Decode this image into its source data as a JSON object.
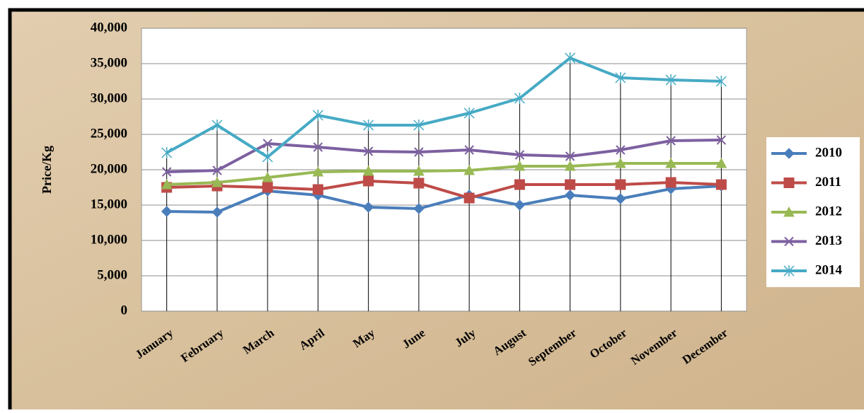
{
  "chart_data": {
    "type": "line",
    "y_label": "Price/Kg",
    "categories": [
      "January",
      "February",
      "March",
      "April",
      "May",
      "June",
      "July",
      "August",
      "September",
      "October",
      "November",
      "December"
    ],
    "series": [
      {
        "name": "2010",
        "color": "#4a7ebb",
        "marker": "diamond",
        "values": [
          14100,
          14000,
          17000,
          16400,
          14700,
          14500,
          16400,
          15000,
          16400,
          15900,
          17300,
          17700
        ]
      },
      {
        "name": "2011",
        "color": "#be4b48",
        "marker": "square",
        "values": [
          17500,
          17700,
          17500,
          17200,
          18400,
          18100,
          16000,
          17900,
          17900,
          17900,
          18200,
          17900
        ]
      },
      {
        "name": "2012",
        "color": "#98b954",
        "marker": "triangle",
        "values": [
          17900,
          18200,
          18900,
          19700,
          19800,
          19800,
          19900,
          20500,
          20500,
          20900,
          20900,
          20900
        ]
      },
      {
        "name": "2013",
        "color": "#7d60a0",
        "marker": "x",
        "values": [
          19700,
          19900,
          23700,
          23200,
          22600,
          22500,
          22800,
          22100,
          21900,
          22800,
          24100,
          24200
        ]
      },
      {
        "name": "2014",
        "color": "#46aac5",
        "marker": "star",
        "values": [
          22400,
          26300,
          21800,
          27700,
          26300,
          26300,
          28000,
          30100,
          35800,
          33000,
          32700,
          32500
        ]
      }
    ],
    "ylim": [
      0,
      40000
    ],
    "yticks": [
      0,
      {
        "value": 5000,
        "label": "5,000"
      },
      {
        "value": 10000,
        "label": "10,000"
      },
      {
        "value": 15000,
        "label": "15,000"
      },
      {
        "value": 20000,
        "label": "20,000"
      },
      {
        "value": 25000,
        "label": "25,000"
      },
      {
        "value": 30000,
        "label": "30,000"
      },
      {
        "value": 35000,
        "label": "35,000"
      },
      {
        "value": 40000,
        "label": "40,000"
      }
    ],
    "grid": true,
    "drop_lines": true,
    "legend": "right"
  }
}
